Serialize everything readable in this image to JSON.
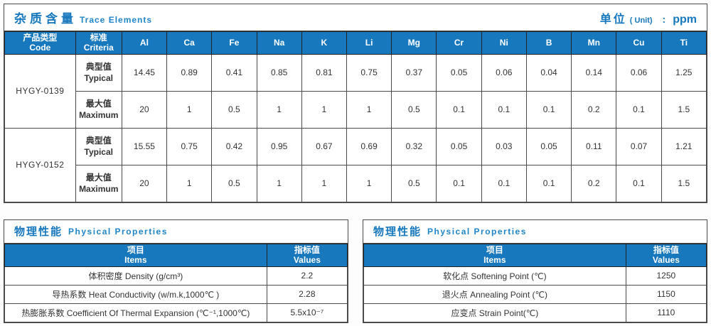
{
  "colors": {
    "accent_blue": "#1778be",
    "header_text": "#ffffff",
    "border_dark": "#4a4a4a"
  },
  "trace": {
    "title_cn": "杂质含量",
    "title_en": "Trace Elements",
    "unit_cn": "单位",
    "unit_en": "( Unit)",
    "unit_colon": ":",
    "unit_value": "ppm",
    "col_code_cn": "产品类型",
    "col_code_en": "Code",
    "col_criteria_cn": "标准",
    "col_criteria_en": "Criteria",
    "elements": [
      "Al",
      "Ca",
      "Fe",
      "Na",
      "K",
      "Li",
      "Mg",
      "Cr",
      "Ni",
      "B",
      "Mn",
      "Cu",
      "Ti"
    ],
    "row_label_typical_cn": "典型值",
    "row_label_typical_en": "Typical",
    "row_label_max_cn": "最大值",
    "row_label_max_en": "Maximum",
    "products": [
      {
        "code": "HYGY-0139",
        "typical": [
          "14.45",
          "0.89",
          "0.41",
          "0.85",
          "0.81",
          "0.75",
          "0.37",
          "0.05",
          "0.06",
          "0.04",
          "0.14",
          "0.06",
          "1.25"
        ],
        "maximum": [
          "20",
          "1",
          "0.5",
          "1",
          "1",
          "1",
          "0.5",
          "0.1",
          "0.1",
          "0.1",
          "0.2",
          "0.1",
          "1.5"
        ]
      },
      {
        "code": "HYGY-0152",
        "typical": [
          "15.55",
          "0.75",
          "0.42",
          "0.95",
          "0.67",
          "0.69",
          "0.32",
          "0.05",
          "0.03",
          "0.05",
          "0.11",
          "0.07",
          "1.21"
        ],
        "maximum": [
          "20",
          "1",
          "0.5",
          "1",
          "1",
          "1",
          "0.5",
          "0.1",
          "0.1",
          "0.1",
          "0.2",
          "0.1",
          "1.5"
        ]
      }
    ]
  },
  "physical_left": {
    "title_cn": "物理性能",
    "title_en": "Physical Properties",
    "col_items_cn": "项目",
    "col_items_en": "Items",
    "col_values_cn": "指标值",
    "col_values_en": "Values",
    "rows": [
      {
        "item": "体积密度 Density (g/cm³)",
        "value": "2.2"
      },
      {
        "item": "导热系数 Heat Conductivity (w/m.k,1000℃ )",
        "value": "2.28"
      },
      {
        "item": "热膨胀系数 Coefficient Of Thermal Expansion (℃⁻¹,1000℃)",
        "value": "5.5x10⁻⁷"
      }
    ]
  },
  "physical_right": {
    "title_cn": "物理性能",
    "title_en": "Physical Properties",
    "col_items_cn": "项目",
    "col_items_en": "Items",
    "col_values_cn": "指标值",
    "col_values_en": "Values",
    "rows": [
      {
        "item": "软化点 Softening Point (℃)",
        "value": "1250"
      },
      {
        "item": "退火点 Annealing Point (℃)",
        "value": "1150"
      },
      {
        "item": "应变点 Strain Point(℃)",
        "value": "1110"
      }
    ]
  }
}
